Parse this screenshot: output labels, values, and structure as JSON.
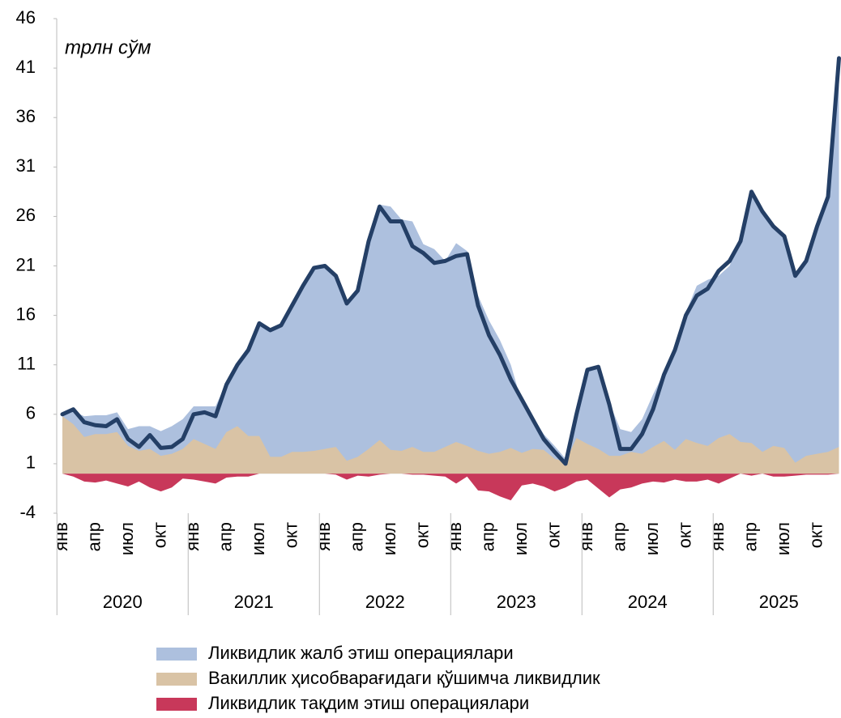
{
  "chart_data": {
    "type": "area",
    "annotation": "трлн сўм",
    "categories": [
      "янв",
      null,
      null,
      "апр",
      null,
      null,
      "июл",
      null,
      null,
      "окт",
      null,
      null,
      "янв",
      null,
      null,
      "апр",
      null,
      null,
      "июл",
      null,
      null,
      "окт",
      null,
      null,
      "янв",
      null,
      null,
      "апр",
      null,
      null,
      "июл",
      null,
      null,
      "окт",
      null,
      null,
      "янв",
      null,
      null,
      "апр",
      null,
      null,
      "июл",
      null,
      null,
      "окт",
      null,
      null,
      "янв",
      null,
      null,
      "апр",
      null,
      null,
      "июл",
      null,
      null,
      "окт",
      null,
      null,
      "янв",
      null,
      null,
      "апр",
      null,
      null,
      "июл",
      null,
      null,
      "окт",
      null,
      null
    ],
    "years": [
      "2020",
      "2021",
      "2022",
      "2023",
      "2024",
      "2025"
    ],
    "series": [
      {
        "name": "Ликвидлик жалб этиш операциялари",
        "color": "#adc0de",
        "kind": "area",
        "values": [
          6,
          6.3,
          5.8,
          5.9,
          5.9,
          6.2,
          4.5,
          4.8,
          4.8,
          4.3,
          4.8,
          5.5,
          6.8,
          6.8,
          6.8,
          9.2,
          11.2,
          12.8,
          15.2,
          14.6,
          15.2,
          17.2,
          19.2,
          21,
          21.2,
          20.2,
          17.4,
          18.7,
          23.7,
          27.2,
          27,
          25.7,
          25.5,
          23.2,
          22.7,
          21.5,
          23.3,
          22.5,
          18,
          15.5,
          13.5,
          11,
          7.2,
          5.8,
          4,
          2.8,
          1.5,
          6.2,
          10.6,
          10.8,
          7.2,
          4.5,
          4.2,
          5.5,
          8,
          10.2,
          12.7,
          16.3,
          19,
          19.6,
          20,
          21,
          24,
          28.3,
          26.7,
          25.2,
          24.2,
          20,
          21.5,
          25,
          28,
          42
        ]
      },
      {
        "name": "Вакиллик ҳисобварағидаги қўшимча ликвидлик",
        "color": "#d9c3a5",
        "kind": "area",
        "values": [
          5.8,
          5,
          3.7,
          4,
          4,
          4.2,
          2.8,
          2.3,
          2.5,
          1.8,
          2,
          2.5,
          3.5,
          3,
          2.5,
          4.2,
          4.8,
          3.8,
          3.8,
          1.7,
          1.7,
          2.2,
          2.2,
          2.3,
          2.5,
          2.7,
          1.3,
          1.7,
          2.5,
          3.4,
          2.4,
          2.3,
          2.7,
          2.2,
          2.2,
          2.7,
          3.2,
          2.8,
          2.3,
          2,
          2.2,
          2.6,
          2.1,
          2.5,
          2.4,
          1.5,
          1.2,
          3.6,
          3,
          2.5,
          1.8,
          1.8,
          2.2,
          2,
          2.7,
          3.3,
          2.4,
          3.5,
          3.1,
          2.8,
          3.6,
          4,
          3.2,
          3.1,
          2.2,
          2.8,
          2.6,
          1.1,
          1.8,
          2,
          2.2,
          2.7
        ]
      },
      {
        "name": "Ликвидлик тақдим этиш операциялари",
        "color": "#c8385a",
        "kind": "area",
        "values": [
          0,
          -0.3,
          -0.8,
          -0.9,
          -0.7,
          -1,
          -1.3,
          -0.8,
          -1.4,
          -1.8,
          -1.4,
          -0.5,
          -0.6,
          -0.8,
          -1,
          -0.4,
          -0.3,
          -0.3,
          0,
          0,
          0,
          0,
          0,
          0,
          0,
          -0.1,
          -0.6,
          -0.2,
          -0.3,
          -0.1,
          0,
          0,
          -0.1,
          -0.1,
          -0.2,
          -0.3,
          -1,
          -0.3,
          -1.7,
          -1.8,
          -2.3,
          -2.7,
          -1.2,
          -1,
          -1.3,
          -1.8,
          -1.4,
          -0.8,
          -0.6,
          -1.5,
          -2.4,
          -1.6,
          -1.4,
          -1,
          -0.8,
          -0.9,
          -0.6,
          -0.8,
          -0.8,
          -0.6,
          -1,
          -0.5,
          0,
          -0.2,
          0,
          -0.3,
          -0.3,
          -0.2,
          -0.1,
          -0.1,
          -0.1,
          0
        ]
      },
      {
        "color": "#243f66",
        "kind": "line",
        "values": [
          6,
          6.5,
          5.2,
          4.9,
          4.8,
          5.5,
          3.5,
          2.7,
          3.9,
          2.6,
          2.7,
          3.5,
          6,
          6.2,
          5.8,
          9,
          11,
          12.5,
          15.2,
          14.5,
          15,
          17,
          19,
          20.8,
          21,
          20,
          17.2,
          18.5,
          23.5,
          27,
          25.5,
          25.5,
          23,
          22.3,
          21.3,
          21.5,
          22,
          22.2,
          17,
          14,
          12,
          9.5,
          7.5,
          5.5,
          3.5,
          2.2,
          1,
          6,
          10.5,
          10.8,
          7,
          2.5,
          2.5,
          4,
          6.5,
          10,
          12.5,
          16,
          18,
          18.7,
          20.5,
          21.5,
          23.5,
          28.5,
          26.5,
          25,
          24,
          20,
          21.5,
          25,
          28,
          42
        ]
      }
    ],
    "ylim": [
      -4,
      46
    ],
    "yticks": [
      -4,
      1,
      6,
      11,
      16,
      21,
      26,
      31,
      36,
      41,
      46
    ],
    "grid": false
  }
}
